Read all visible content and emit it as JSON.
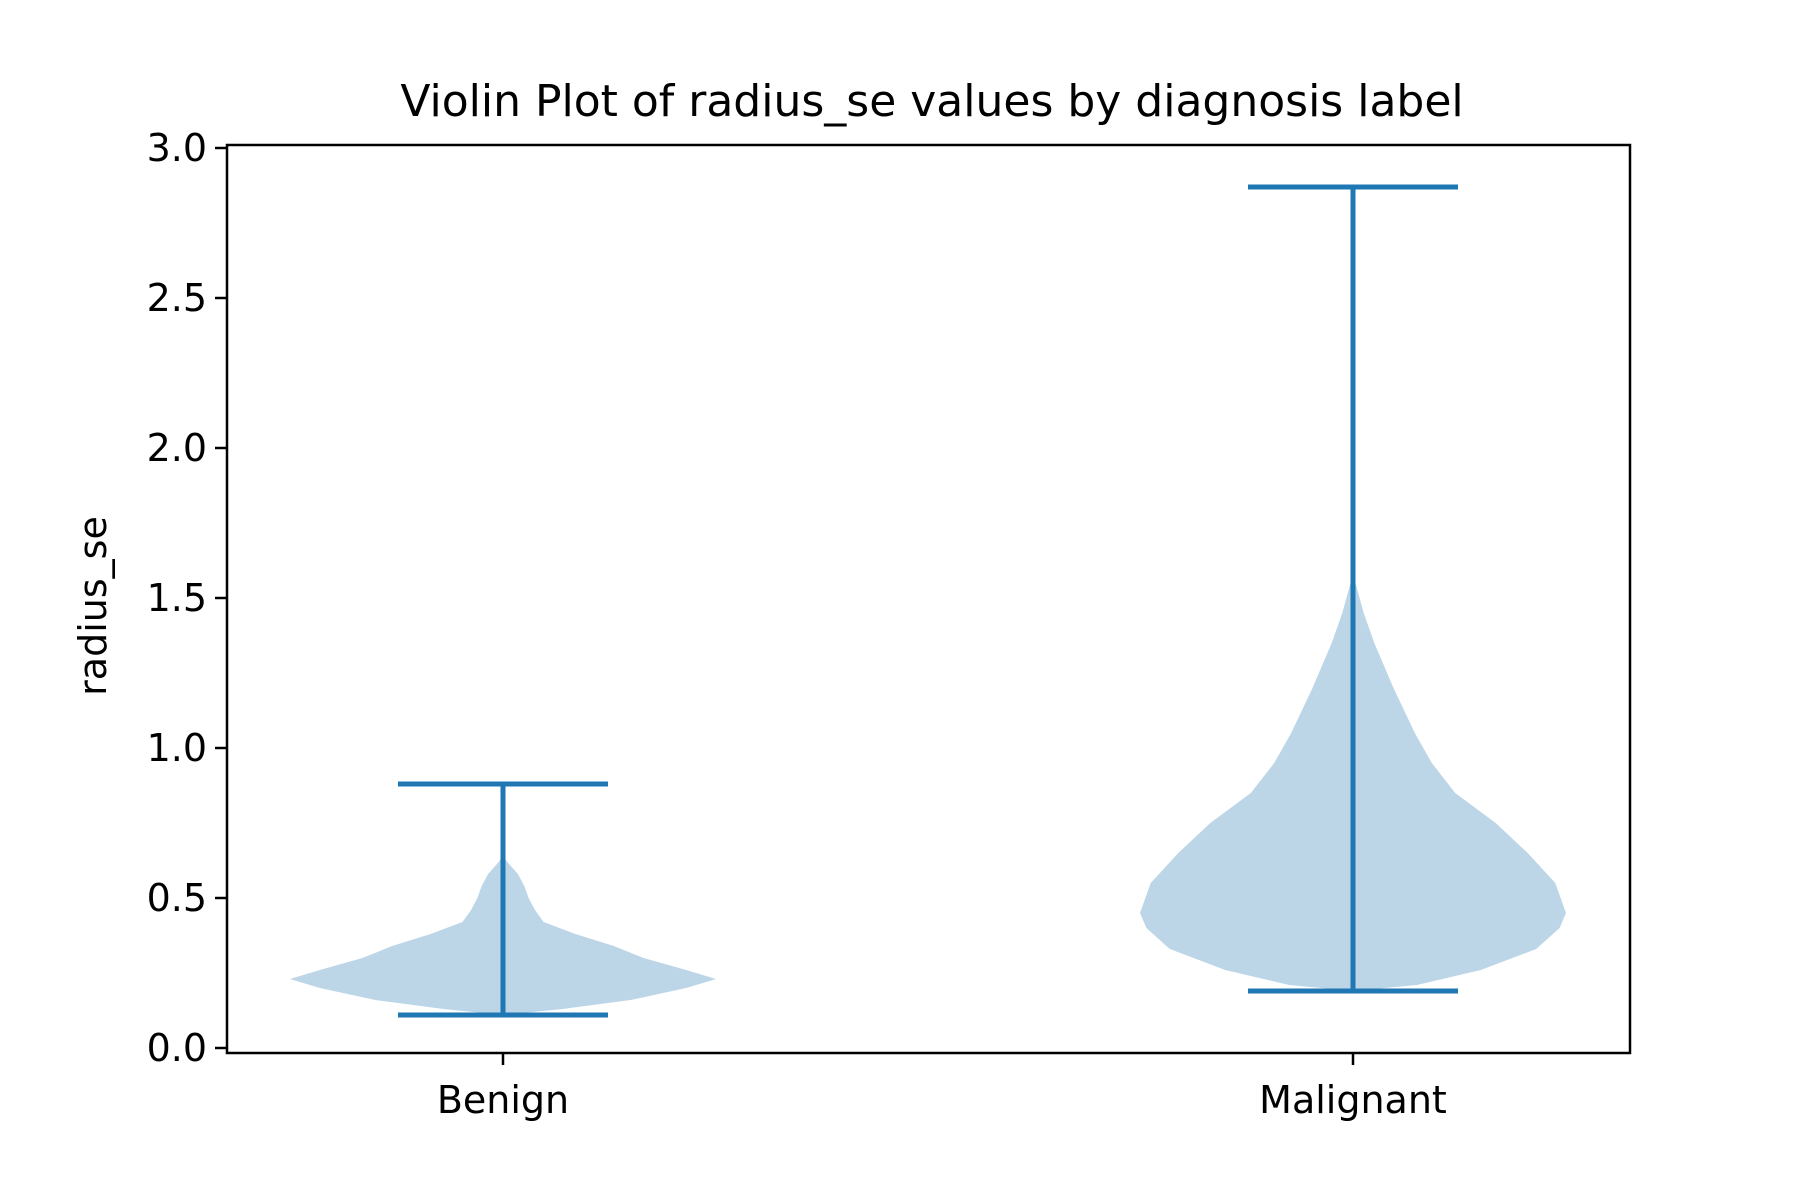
{
  "chart_data": {
    "type": "violin",
    "title": "Violin Plot of radius_se values by diagnosis label",
    "xlabel": "",
    "ylabel": "radius_se",
    "ylim": [
      0.0,
      3.0
    ],
    "yticks": [
      0.0,
      0.5,
      1.0,
      1.5,
      2.0,
      2.5,
      3.0
    ],
    "ytick_labels": [
      "0.0",
      "0.5",
      "1.0",
      "1.5",
      "2.0",
      "2.5",
      "3.0"
    ],
    "categories": [
      "Benign",
      "Malignant"
    ],
    "grid": false,
    "colors": {
      "body": "#bcd6e8",
      "lines": "#1f77b4"
    },
    "violins": [
      {
        "category": "Benign",
        "min": 0.11,
        "max": 0.88,
        "density_profile": [
          [
            0.11,
            0.0
          ],
          [
            0.13,
            0.28
          ],
          [
            0.16,
            0.6
          ],
          [
            0.2,
            0.86
          ],
          [
            0.23,
            1.0
          ],
          [
            0.26,
            0.86
          ],
          [
            0.3,
            0.66
          ],
          [
            0.34,
            0.52
          ],
          [
            0.38,
            0.34
          ],
          [
            0.42,
            0.19
          ],
          [
            0.46,
            0.15
          ],
          [
            0.5,
            0.12
          ],
          [
            0.54,
            0.1
          ],
          [
            0.58,
            0.07
          ],
          [
            0.62,
            0.02
          ],
          [
            0.64,
            0.0
          ]
        ]
      },
      {
        "category": "Malignant",
        "min": 0.19,
        "max": 2.87,
        "density_profile": [
          [
            0.19,
            0.0
          ],
          [
            0.21,
            0.3
          ],
          [
            0.26,
            0.6
          ],
          [
            0.33,
            0.86
          ],
          [
            0.4,
            0.97
          ],
          [
            0.45,
            1.0
          ],
          [
            0.55,
            0.95
          ],
          [
            0.65,
            0.82
          ],
          [
            0.75,
            0.67
          ],
          [
            0.85,
            0.48
          ],
          [
            0.95,
            0.37
          ],
          [
            1.05,
            0.29
          ],
          [
            1.2,
            0.19
          ],
          [
            1.35,
            0.1
          ],
          [
            1.45,
            0.05
          ],
          [
            1.58,
            0.0
          ]
        ]
      }
    ]
  }
}
